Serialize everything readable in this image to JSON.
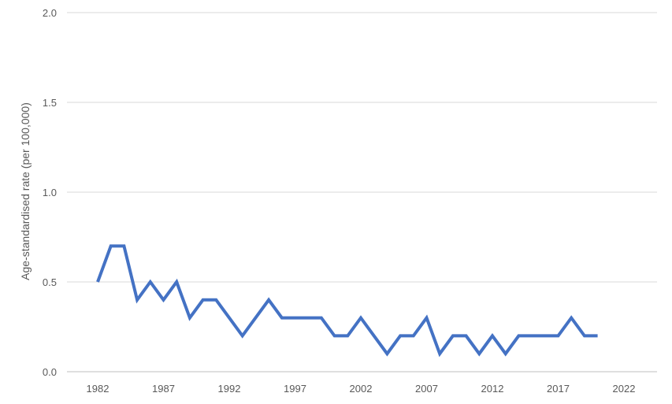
{
  "chart_data": {
    "type": "line",
    "title": "",
    "xlabel": "",
    "ylabel": "Age-standardised rate (per 100,000)",
    "xlim": [
      1980,
      2024
    ],
    "ylim": [
      0,
      2
    ],
    "x_ticks": [
      "1982",
      "1987",
      "1992",
      "1997",
      "2002",
      "2007",
      "2012",
      "2017",
      "2022"
    ],
    "y_ticks": [
      "0.0",
      "0.5",
      "1.0",
      "1.5",
      "2.0"
    ],
    "grid": "horizontal",
    "legend": "none",
    "series": [
      {
        "color": "#4472C4",
        "x": [
          1982,
          1983,
          1984,
          1985,
          1986,
          1987,
          1988,
          1989,
          1990,
          1991,
          1992,
          1993,
          1994,
          1995,
          1996,
          1997,
          1998,
          1999,
          2000,
          2001,
          2002,
          2003,
          2004,
          2005,
          2006,
          2007,
          2008,
          2009,
          2010,
          2011,
          2012,
          2013,
          2014,
          2015,
          2016,
          2017,
          2018,
          2019,
          2020
        ],
        "values": [
          0.5,
          0.7,
          0.7,
          0.4,
          0.5,
          0.4,
          0.5,
          0.3,
          0.4,
          0.4,
          0.3,
          0.2,
          0.3,
          0.4,
          0.3,
          0.3,
          0.3,
          0.3,
          0.2,
          0.2,
          0.3,
          0.2,
          0.1,
          0.2,
          0.2,
          0.3,
          0.1,
          0.2,
          0.2,
          0.1,
          0.2,
          0.1,
          0.2,
          0.2,
          0.2,
          0.2,
          0.3,
          0.2,
          0.2
        ]
      }
    ]
  }
}
